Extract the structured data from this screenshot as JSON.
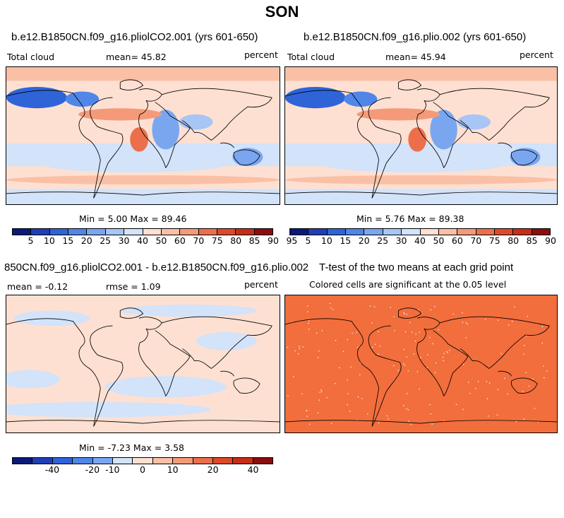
{
  "page": {
    "season": "SON"
  },
  "panels": [
    {
      "title": "b.e12.B1850CN.f09_g16.pliolCO2.001 (yrs 601-650)",
      "left_label": "Total cloud",
      "mean_label": "mean=  45.82",
      "units": "percent",
      "stats": "Min =   5.00 Max =  89.46",
      "kind": "mean",
      "cbar": "abs"
    },
    {
      "title": "b.e12.B1850CN.f09_g16.plio.002 (yrs 601-650)",
      "left_label": "Total cloud",
      "mean_label": "mean=  45.94",
      "units": "percent",
      "stats": "Min =   5.76 Max =  89.38",
      "kind": "mean",
      "cbar": "abs"
    },
    {
      "title": "850CN.f09_g16.pliolCO2.001 - b.e12.B1850CN.f09_g16.plio.002",
      "left_label": "mean =  -0.12",
      "mean_label": "rmse =   1.09",
      "units": "percent",
      "stats": "Min =  -7.23 Max =   3.58",
      "kind": "diff",
      "cbar": "diff"
    },
    {
      "title": "T-test of the two means at each grid point",
      "subtitle": "Colored cells are significant at the 0.05 level",
      "kind": "ttest"
    }
  ],
  "colors": {
    "abs_scale": [
      "#0a1a7a",
      "#1f3fb8",
      "#2e64d8",
      "#4f86e8",
      "#7aa6f0",
      "#a7c5f5",
      "#d2e3fa",
      "#fde0d2",
      "#f9c0a5",
      "#f49a78",
      "#ec6f4c",
      "#dd4a2a",
      "#c72e17",
      "#8c0d0d"
    ],
    "diff_scale": [
      "#0a1a7a",
      "#1f3fb8",
      "#2e64d8",
      "#4f86e8",
      "#7aa6f0",
      "#d2e3fa",
      "#fde0d2",
      "#f9c0a5",
      "#f49a78",
      "#ec6f4c",
      "#dd4a2a",
      "#c72e17",
      "#8c0d0d"
    ],
    "ttest_fill": "#f26e3c"
  },
  "chart_data": [
    {
      "type": "heatmap",
      "title": "b.e12.B1850CN.f09_g16.pliolCO2.001 (yrs 601-650)",
      "variable": "Total cloud",
      "units": "percent",
      "mean": 45.82,
      "min": 5.0,
      "max": 89.46,
      "colorbar_levels": [
        5,
        10,
        15,
        20,
        25,
        30,
        40,
        50,
        60,
        70,
        75,
        80,
        85,
        90,
        95
      ]
    },
    {
      "type": "heatmap",
      "title": "b.e12.B1850CN.f09_g16.plio.002 (yrs 601-650)",
      "variable": "Total cloud",
      "units": "percent",
      "mean": 45.94,
      "min": 5.76,
      "max": 89.38,
      "colorbar_levels": [
        5,
        10,
        15,
        20,
        25,
        30,
        40,
        50,
        60,
        70,
        75,
        80,
        85,
        90,
        95
      ]
    },
    {
      "type": "heatmap",
      "title": "850CN.f09_g16.pliolCO2.001 - b.e12.B1850CN.f09_g16.plio.002",
      "units": "percent",
      "mean": -0.12,
      "rmse": 1.09,
      "min": -7.23,
      "max": 3.58,
      "colorbar_labels": [
        -40,
        -20,
        -10,
        0,
        10,
        20,
        40
      ]
    },
    {
      "type": "heatmap",
      "title": "T-test of the two means at each grid point",
      "subtitle": "Colored cells are significant at the 0.05 level"
    }
  ],
  "colorbar_labels": {
    "abs": [
      "5",
      "10",
      "15",
      "20",
      "25",
      "30",
      "40",
      "50",
      "60",
      "70",
      "75",
      "80",
      "85",
      "90",
      "95"
    ],
    "diff": [
      "-40",
      "-20",
      "-10",
      "0",
      "10",
      "20",
      "40"
    ]
  }
}
